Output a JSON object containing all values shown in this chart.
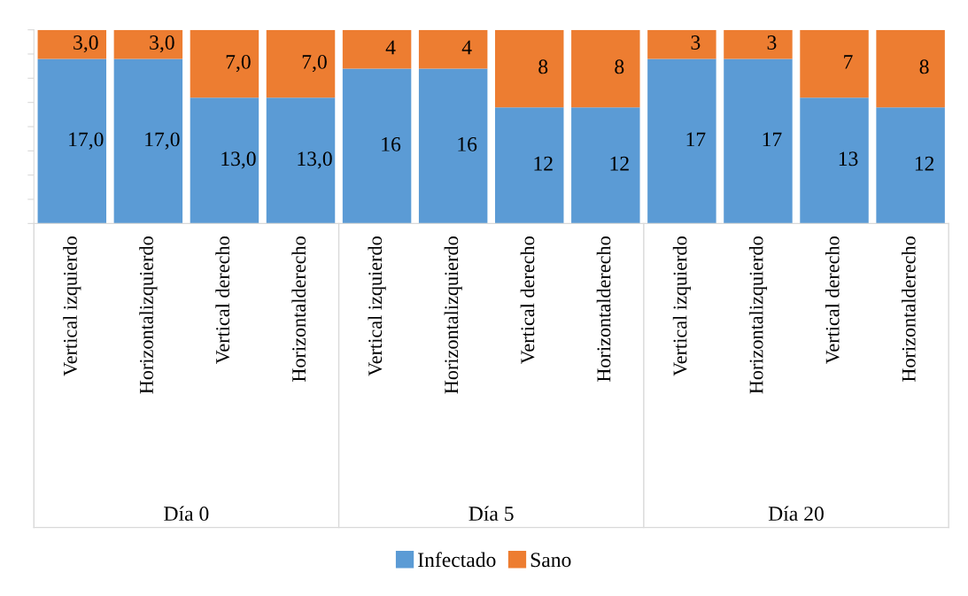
{
  "chart_data": {
    "type": "bar",
    "stacked": true,
    "categories": [
      "Vertical izquierdo",
      "Horizontalizquierdo",
      "Vertical derecho",
      "Horizontalderecho",
      "Vertical izquierdo",
      "Horizontalizquierdo",
      "Vertical derecho",
      "Horizontalderecho",
      "Vertical izquierdo",
      "Horizontalizquierdo",
      "Vertical derecho",
      "Horizontalderecho"
    ],
    "series": [
      {
        "name": "Infectado",
        "color": "#5b9bd5",
        "values": [
          17,
          17,
          13,
          13,
          16,
          16,
          12,
          12,
          17,
          17,
          13,
          12
        ],
        "value_labels": [
          "17,0",
          "17,0",
          "13,0",
          "13,0",
          "16",
          "16",
          "12",
          "12",
          "17",
          "17",
          "13",
          "12"
        ]
      },
      {
        "name": "Sano",
        "color": "#ed7d31",
        "values": [
          3,
          3,
          7,
          7,
          4,
          4,
          8,
          8,
          3,
          3,
          7,
          8
        ],
        "value_labels": [
          "3,0",
          "3,0",
          "7,0",
          "7,0",
          "4",
          "4",
          "8",
          "8",
          "3",
          "3",
          "7",
          "8"
        ]
      }
    ],
    "ylim": [
      0,
      20
    ],
    "tick_labels": "x",
    "grid": false,
    "legend": "bottom",
    "annotations": [
      "Día 0",
      "Día 5",
      "Día 20"
    ]
  }
}
